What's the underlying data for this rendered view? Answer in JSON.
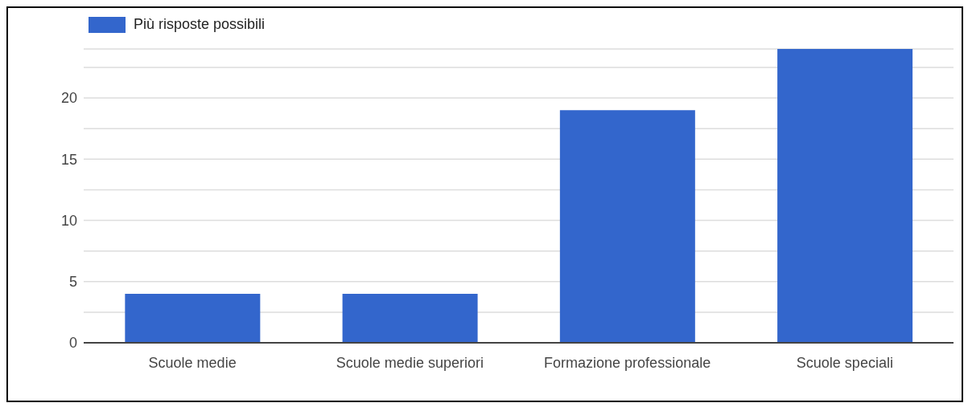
{
  "chart_data": {
    "type": "bar",
    "categories": [
      "Scuole medie",
      "Scuole medie superiori",
      "Formazione professionale",
      "Scuole speciali"
    ],
    "series": [
      {
        "name": "Più risposte possibili",
        "color": "#3366cc",
        "values": [
          4,
          4,
          19,
          24
        ]
      }
    ],
    "ylim": [
      0,
      24
    ],
    "yticks": [
      0,
      {
        "value": 2.5,
        "label": null
      },
      5,
      {
        "value": 7.5,
        "label": null
      },
      10,
      {
        "value": 12.5,
        "label": null
      },
      15,
      {
        "value": 17.5,
        "label": null
      },
      20,
      {
        "value": 22.5,
        "label": null
      }
    ],
    "grid": "y",
    "legend": "top left"
  }
}
